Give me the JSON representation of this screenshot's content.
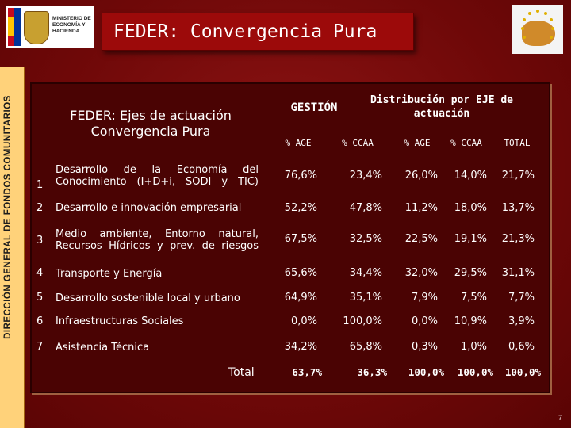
{
  "slide": {
    "title": "FEDER: Convergencia Pura",
    "side_text": "DIRECCIÓN GENERAL DE FONDOS COMUNITARIOS",
    "logo_text": "MINISTERIO DE ECONOMÍA Y HACIENDA",
    "page_number": "7"
  },
  "table": {
    "header_axes": "FEDER: Ejes de actuación Convergencia Pura",
    "header_gestion": "GESTIÓN",
    "header_distribution": "Distribución por EJE de actuación",
    "columns": [
      "% AGE",
      "% CCAA",
      "% AGE",
      "% CCAA",
      "TOTAL"
    ],
    "rows": [
      {
        "num": "1",
        "label": "Desarrollo de la Economía del Conocimiento (I+D+i, SODI y TIC)",
        "values": [
          "76,6%",
          "23,4%",
          "26,0%",
          "14,0%",
          "21,7%"
        ]
      },
      {
        "num": "2",
        "label": "Desarrollo e innovación empresarial",
        "values": [
          "52,2%",
          "47,8%",
          "11,2%",
          "18,0%",
          "13,7%"
        ]
      },
      {
        "num": "3",
        "label": "Medio ambiente, Entorno natural, Recursos Hídricos y prev. de riesgos",
        "values": [
          "67,5%",
          "32,5%",
          "22,5%",
          "19,1%",
          "21,3%"
        ]
      },
      {
        "num": "4",
        "label": "Transporte y Energía",
        "values": [
          "65,6%",
          "34,4%",
          "32,0%",
          "29,5%",
          "31,1%"
        ]
      },
      {
        "num": "5",
        "label": "Desarrollo sostenible local y urbano",
        "values": [
          "64,9%",
          "35,1%",
          "7,9%",
          "7,5%",
          "7,7%"
        ]
      },
      {
        "num": "6",
        "label": "Infraestructuras Sociales",
        "values": [
          "0,0%",
          "100,0%",
          "0,0%",
          "10,9%",
          "3,9%"
        ]
      },
      {
        "num": "7",
        "label": "Asistencia Técnica",
        "values": [
          "34,2%",
          "65,8%",
          "0,3%",
          "1,0%",
          "0,6%"
        ]
      }
    ],
    "total_label": "Total",
    "totals": [
      "63,7%",
      "36,3%",
      "100,0%",
      "100,0%",
      "100,0%"
    ]
  }
}
